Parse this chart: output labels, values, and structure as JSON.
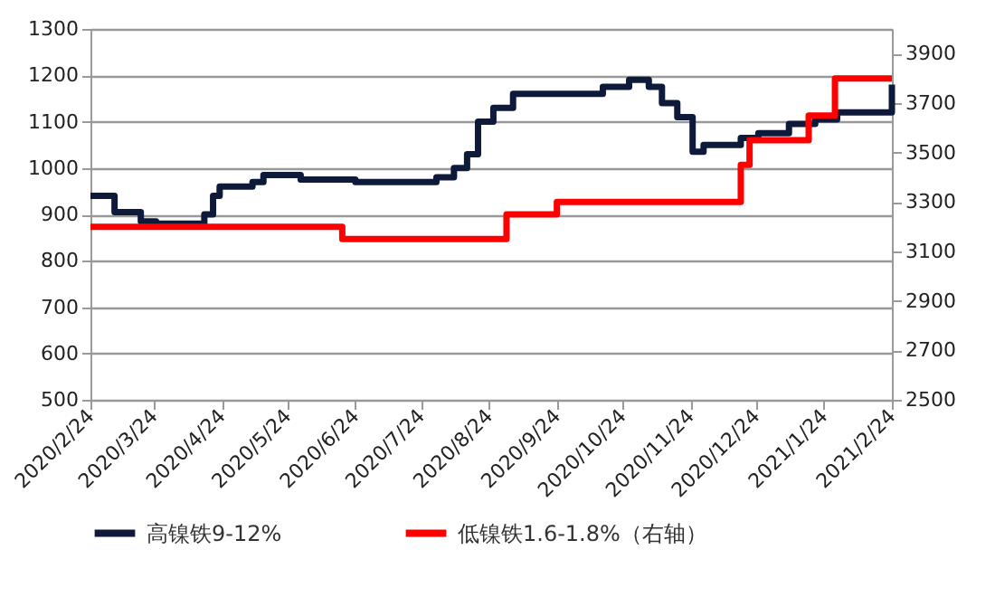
{
  "chart_data": {
    "type": "step",
    "xlim": [
      "2020-02-24",
      "2021-02-24"
    ],
    "xticks": [
      {
        "value": "2020-02-24",
        "label": "2020/2/24"
      },
      {
        "value": "2020-03-24",
        "label": "2020/3/24"
      },
      {
        "value": "2020-04-24",
        "label": "2020/4/24"
      },
      {
        "value": "2020-05-24",
        "label": "2020/5/24"
      },
      {
        "value": "2020-06-24",
        "label": "2020/6/24"
      },
      {
        "value": "2020-07-24",
        "label": "2020/7/24"
      },
      {
        "value": "2020-08-24",
        "label": "2020/8/24"
      },
      {
        "value": "2020-09-24",
        "label": "2020/9/24"
      },
      {
        "value": "2020-10-24",
        "label": "2020/10/24"
      },
      {
        "value": "2020-11-24",
        "label": "2020/11/24"
      },
      {
        "value": "2020-12-24",
        "label": "2020/12/24"
      },
      {
        "value": "2021-01-24",
        "label": "2021/1/24"
      },
      {
        "value": "2021-02-24",
        "label": "2021/2/24"
      }
    ],
    "ylim": [
      500,
      1300
    ],
    "yticks": [
      500,
      600,
      700,
      800,
      900,
      1000,
      1100,
      1200,
      1300
    ],
    "y2lim": [
      2500,
      4000
    ],
    "y2ticks": [
      2500,
      2700,
      2900,
      3100,
      3300,
      3500,
      3700,
      3900
    ],
    "grid": "y",
    "legend": "bottom",
    "line_style": "solid",
    "marker": "none",
    "series": [
      {
        "name": "高镍铁9-12%",
        "color": "#0d1a3a",
        "x": [
          "2020-02-24",
          "2020-03-06",
          "2020-03-18",
          "2020-03-25",
          "2020-04-16",
          "2020-04-20",
          "2020-04-23",
          "2020-05-08",
          "2020-05-13",
          "2020-05-30",
          "2020-06-24",
          "2020-07-31",
          "2020-08-08",
          "2020-08-14",
          "2020-08-19",
          "2020-08-26",
          "2020-09-04",
          "2020-10-15",
          "2020-10-27",
          "2020-11-05",
          "2020-11-11",
          "2020-11-18",
          "2020-11-25",
          "2020-11-30",
          "2020-12-17",
          "2020-12-25",
          "2021-01-08",
          "2021-01-20",
          "2021-01-30",
          "2021-02-20",
          "2021-02-24"
        ],
        "values": [
          940,
          905,
          885,
          880,
          900,
          940,
          960,
          970,
          985,
          975,
          970,
          980,
          1000,
          1030,
          1100,
          1130,
          1160,
          1175,
          1190,
          1175,
          1140,
          1110,
          1035,
          1050,
          1065,
          1075,
          1095,
          1105,
          1120,
          1120,
          1180
        ]
      },
      {
        "name": "低镍铁1.6-1.8%（右轴）",
        "color": "#ff0000",
        "axis": "y2",
        "x": [
          "2020-02-24",
          "2020-06-18",
          "2020-09-01",
          "2020-09-24",
          "2020-12-17",
          "2020-12-21",
          "2021-01-17",
          "2021-01-29",
          "2021-02-24"
        ],
        "values": [
          3200,
          3150,
          3250,
          3300,
          3450,
          3550,
          3650,
          3800,
          3800
        ]
      }
    ]
  }
}
